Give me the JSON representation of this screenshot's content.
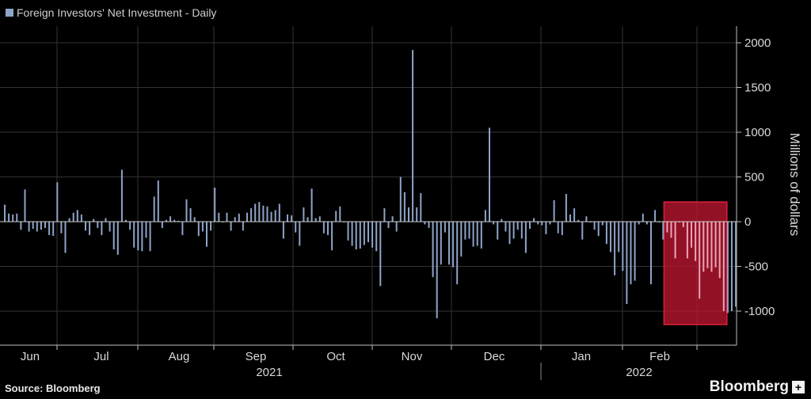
{
  "chart_data": {
    "type": "bar",
    "legend": "Foreign Investors' Net Investment - Daily",
    "ylabel": "Millions of dollars",
    "ylim": [
      -1300,
      2150
    ],
    "yticks": [
      2000,
      1500,
      1000,
      500,
      0,
      -500,
      -1000
    ],
    "month_labels": [
      "Jun",
      "Jul",
      "Aug",
      "Sep",
      "Oct",
      "Nov",
      "Dec",
      "Jan",
      "Feb"
    ],
    "year_labels": [
      "2021",
      "2022"
    ],
    "grid": true,
    "colors": {
      "bar": "#8ea4c8",
      "highlight_bar": "#e9a4ba",
      "highlight_fill": "#c41730",
      "highlight_edge": "#e01f3d",
      "grid": "#333333"
    },
    "highlight": {
      "from_index": 164,
      "to_index": 178,
      "y_range": [
        -1150,
        220
      ]
    },
    "values": [
      190,
      90,
      80,
      90,
      -90,
      360,
      -110,
      -80,
      -110,
      -90,
      -70,
      -150,
      -160,
      440,
      -130,
      -350,
      40,
      100,
      130,
      80,
      -100,
      -150,
      30,
      -70,
      -150,
      40,
      -110,
      -310,
      -370,
      580,
      20,
      -90,
      -290,
      -320,
      -330,
      -180,
      -330,
      280,
      460,
      -70,
      20,
      60,
      20,
      10,
      -150,
      250,
      150,
      50,
      -160,
      -110,
      -280,
      -100,
      380,
      100,
      0,
      100,
      -100,
      50,
      90,
      -100,
      100,
      150,
      200,
      220,
      180,
      170,
      110,
      130,
      200,
      -190,
      80,
      70,
      -120,
      -270,
      160,
      50,
      370,
      40,
      60,
      -130,
      -150,
      -320,
      120,
      170,
      0,
      -210,
      -270,
      -310,
      -300,
      -260,
      -230,
      -290,
      -330,
      -720,
      150,
      -70,
      60,
      -110,
      500,
      330,
      160,
      1920,
      160,
      320,
      -30,
      -70,
      -620,
      -1080,
      -480,
      -120,
      -480,
      -510,
      -700,
      -390,
      -200,
      -190,
      -280,
      -270,
      -300,
      130,
      1050,
      -30,
      -200,
      30,
      -110,
      -250,
      -190,
      -90,
      -190,
      -350,
      -80,
      40,
      -30,
      -40,
      -140,
      -30,
      240,
      -130,
      -150,
      310,
      80,
      150,
      20,
      -200,
      60,
      -10,
      -90,
      -160,
      -40,
      -250,
      -340,
      -600,
      -340,
      -550,
      -920,
      -700,
      -660,
      -30,
      90,
      -30,
      -700,
      130,
      0,
      -200,
      -120,
      -180,
      -410,
      0,
      -60,
      -410,
      -290,
      -440,
      -860,
      -560,
      -520,
      -560,
      -510,
      -630,
      -1000,
      -1020,
      -1000,
      -950
    ]
  },
  "source": "Source: Bloomberg",
  "brand": "Bloomberg",
  "brand_icon": "plus-box-icon"
}
